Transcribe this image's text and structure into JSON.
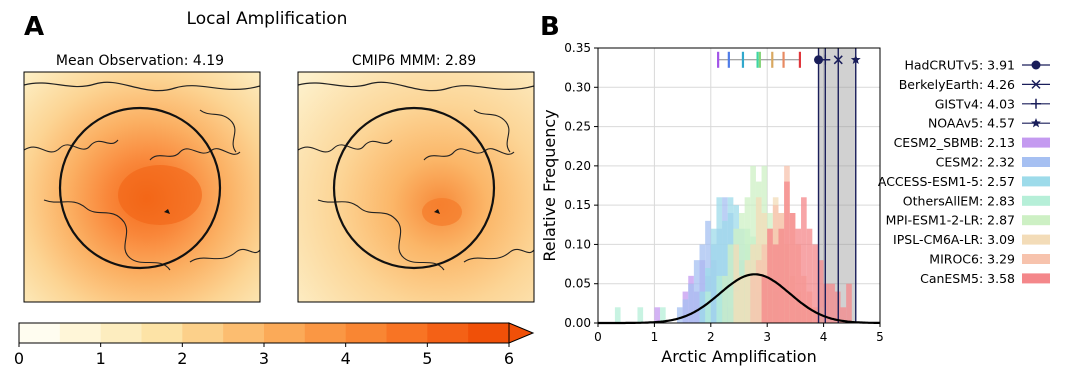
{
  "panel_a": {
    "letter": "A",
    "title": "Local Amplification",
    "maps": [
      {
        "title": "Mean Observation: 4.19"
      },
      {
        "title": "CMIP6 MMM: 2.89"
      }
    ],
    "colorbar": {
      "min": 0,
      "max": 6,
      "step": 0.5,
      "ticks": [
        "0",
        "1",
        "2",
        "3",
        "4",
        "5",
        "6"
      ],
      "colors": [
        "#fffdf0",
        "#fff6d8",
        "#fdedbf",
        "#fde3a6",
        "#fcd08a",
        "#fcbd70",
        "#fbaa58",
        "#fa9744",
        "#f98633",
        "#f87424",
        "#f46116",
        "#f05008"
      ]
    }
  },
  "panel_b": {
    "letter": "B",
    "legend": [
      {
        "label": "HadCRUTv5: 3.91",
        "marker": "circle",
        "color": "#1a1e5a"
      },
      {
        "label": "BerkelyEarth: 4.26",
        "marker": "x",
        "color": "#1a1e5a"
      },
      {
        "label": "GISTv4: 4.03",
        "marker": "plus",
        "color": "#1a1e5a"
      },
      {
        "label": "NOAAv5: 4.57",
        "marker": "star",
        "color": "#1a1e5a"
      },
      {
        "label": "CESM2_SBMB: 2.13",
        "marker": "patch",
        "color": "#c49af0"
      },
      {
        "label": "CESM2: 2.32",
        "marker": "patch",
        "color": "#a6c0f2"
      },
      {
        "label": "ACCESS-ESM1-5: 2.57",
        "marker": "patch",
        "color": "#9ddbea"
      },
      {
        "label": "OthersAllEM: 2.83",
        "marker": "patch",
        "color": "#b6efd8"
      },
      {
        "label": "MPI-ESM1-2-LR: 2.87",
        "marker": "patch",
        "color": "#cdf0c4"
      },
      {
        "label": "IPSL-CM6A-LR: 3.09",
        "marker": "patch",
        "color": "#f3dcb8"
      },
      {
        "label": "MIROC6: 3.29",
        "marker": "patch",
        "color": "#f7c3ad"
      },
      {
        "label": "CanESM5: 3.58",
        "marker": "patch",
        "color": "#f4878a"
      }
    ]
  },
  "chart_data": {
    "type": "bar",
    "title": "",
    "xlabel": "Arctic Amplification",
    "ylabel": "Relative Frequency",
    "xlim": [
      0,
      5
    ],
    "ylim": [
      0,
      0.35
    ],
    "xticks": [
      "0",
      "1",
      "2",
      "3",
      "4",
      "5"
    ],
    "yticks": [
      "0.00",
      "0.05",
      "0.10",
      "0.15",
      "0.20",
      "0.25",
      "0.30",
      "0.35"
    ],
    "grid": true,
    "legend_position": "right",
    "observations": [
      {
        "name": "HadCRUTv5",
        "value": 3.91,
        "marker": "circle"
      },
      {
        "name": "BerkelyEarth",
        "value": 4.26,
        "marker": "x"
      },
      {
        "name": "GISTv4",
        "value": 4.03,
        "marker": "plus"
      },
      {
        "name": "NOAAv5",
        "value": 4.57,
        "marker": "star"
      }
    ],
    "model_means": [
      {
        "name": "CESM2_SBMB",
        "value": 2.13,
        "color": "#a254e8"
      },
      {
        "name": "CESM2",
        "value": 2.32,
        "color": "#4f7ce8"
      },
      {
        "name": "ACCESS-ESM1-5",
        "value": 2.57,
        "color": "#30a8cc"
      },
      {
        "name": "OthersAllEM",
        "value": 2.83,
        "color": "#3dd6a4"
      },
      {
        "name": "MPI-ESM1-2-LR",
        "value": 2.87,
        "color": "#86d47a"
      },
      {
        "name": "IPSL-CM6A-LR",
        "value": 3.09,
        "color": "#d9a860"
      },
      {
        "name": "MIROC6",
        "value": 3.29,
        "color": "#e88a62"
      },
      {
        "name": "CanESM5",
        "value": 3.58,
        "color": "#e0363c"
      }
    ],
    "bin_width": 0.1,
    "histograms": [
      {
        "name": "CESM2_SBMB",
        "color": "#c49af0",
        "bins": [
          [
            1.05,
            0.02
          ],
          [
            1.55,
            0.04
          ],
          [
            1.65,
            0.06
          ],
          [
            1.75,
            0.04
          ],
          [
            1.85,
            0.08
          ],
          [
            1.95,
            0.06
          ],
          [
            2.05,
            0.08
          ],
          [
            2.15,
            0.06
          ],
          [
            2.25,
            0.04
          ],
          [
            2.35,
            0.02
          ],
          [
            2.45,
            0.02
          ]
        ]
      },
      {
        "name": "CESM2",
        "color": "#a6c0f2",
        "bins": [
          [
            1.45,
            0.02
          ],
          [
            1.55,
            0.03
          ],
          [
            1.65,
            0.05
          ],
          [
            1.75,
            0.08
          ],
          [
            1.85,
            0.1
          ],
          [
            1.95,
            0.13
          ],
          [
            2.05,
            0.1
          ],
          [
            2.15,
            0.12
          ],
          [
            2.25,
            0.16
          ],
          [
            2.35,
            0.14
          ],
          [
            2.45,
            0.1
          ],
          [
            2.55,
            0.08
          ]
        ]
      },
      {
        "name": "ACCESS-ESM1-5",
        "color": "#9ddbea",
        "bins": [
          [
            1.85,
            0.04
          ],
          [
            1.95,
            0.07
          ],
          [
            2.05,
            0.12
          ],
          [
            2.15,
            0.16
          ],
          [
            2.25,
            0.13
          ],
          [
            2.35,
            0.16
          ],
          [
            2.45,
            0.15
          ],
          [
            2.55,
            0.12
          ],
          [
            2.65,
            0.1
          ],
          [
            2.75,
            0.08
          ],
          [
            2.85,
            0.04
          ]
        ]
      },
      {
        "name": "OthersAllEM",
        "color": "#b6efd8",
        "bins": [
          [
            0.35,
            0.02
          ],
          [
            0.75,
            0.02
          ],
          [
            1.15,
            0.02
          ],
          [
            1.95,
            0.04
          ],
          [
            2.15,
            0.06
          ],
          [
            2.45,
            0.04
          ],
          [
            2.55,
            0.06
          ],
          [
            2.65,
            0.12
          ],
          [
            2.75,
            0.11
          ],
          [
            2.85,
            0.1
          ],
          [
            2.95,
            0.08
          ],
          [
            3.05,
            0.06
          ],
          [
            3.15,
            0.04
          ],
          [
            3.55,
            0.02
          ],
          [
            3.95,
            0.02
          ]
        ]
      },
      {
        "name": "MPI-ESM1-2-LR",
        "color": "#cdf0c4",
        "bins": [
          [
            2.25,
            0.06
          ],
          [
            2.35,
            0.1
          ],
          [
            2.45,
            0.12
          ],
          [
            2.55,
            0.14
          ],
          [
            2.65,
            0.16
          ],
          [
            2.75,
            0.2
          ],
          [
            2.85,
            0.18
          ],
          [
            2.95,
            0.2
          ],
          [
            3.05,
            0.14
          ],
          [
            3.15,
            0.12
          ],
          [
            3.25,
            0.08
          ],
          [
            3.35,
            0.04
          ]
        ]
      },
      {
        "name": "IPSL-CM6A-LR",
        "color": "#f3dcb8",
        "bins": [
          [
            2.45,
            0.1
          ],
          [
            2.55,
            0.06
          ],
          [
            2.65,
            0.08
          ],
          [
            2.75,
            0.1
          ],
          [
            2.85,
            0.16
          ],
          [
            2.95,
            0.14
          ],
          [
            3.05,
            0.12
          ],
          [
            3.15,
            0.16
          ],
          [
            3.25,
            0.14
          ],
          [
            3.35,
            0.1
          ],
          [
            3.45,
            0.06
          ],
          [
            3.55,
            0.04
          ],
          [
            3.65,
            0.02
          ],
          [
            3.75,
            0.02
          ]
        ]
      },
      {
        "name": "MIROC6",
        "color": "#f7c3ad",
        "bins": [
          [
            2.75,
            0.06
          ],
          [
            2.85,
            0.08
          ],
          [
            2.95,
            0.1
          ],
          [
            3.05,
            0.12
          ],
          [
            3.15,
            0.15
          ],
          [
            3.25,
            0.14
          ],
          [
            3.35,
            0.2
          ],
          [
            3.45,
            0.14
          ],
          [
            3.55,
            0.1
          ],
          [
            3.65,
            0.06
          ],
          [
            3.75,
            0.04
          ],
          [
            3.85,
            0.02
          ]
        ]
      },
      {
        "name": "CanESM5",
        "color": "#f4878a",
        "bins": [
          [
            2.95,
            0.06
          ],
          [
            3.05,
            0.12
          ],
          [
            3.15,
            0.1
          ],
          [
            3.25,
            0.12
          ],
          [
            3.35,
            0.18
          ],
          [
            3.45,
            0.14
          ],
          [
            3.55,
            0.12
          ],
          [
            3.65,
            0.16
          ],
          [
            3.75,
            0.12
          ],
          [
            3.85,
            0.1
          ],
          [
            3.95,
            0.08
          ],
          [
            4.05,
            0.05
          ],
          [
            4.15,
            0.05
          ],
          [
            4.25,
            0.04
          ],
          [
            4.35,
            0.02
          ],
          [
            4.45,
            0.05
          ]
        ]
      }
    ],
    "fit_curve": {
      "color": "#000000",
      "mean": 2.78,
      "sd": 0.62,
      "peak": 0.062
    },
    "obs_range_shading": [
      3.91,
      4.57
    ]
  }
}
